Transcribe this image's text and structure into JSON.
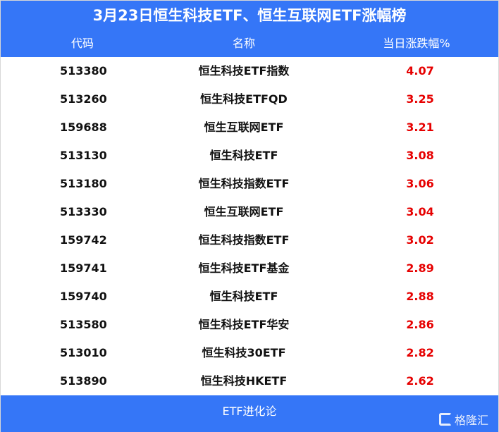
{
  "title": "3月23日恒生科技ETF、恒生互联网ETF涨幅榜",
  "columns": {
    "code": "代码",
    "name": "名称",
    "change": "当日涨跌幅%"
  },
  "rows": [
    {
      "code": "513380",
      "name": "恒生科技ETF指数",
      "change": "4.07"
    },
    {
      "code": "513260",
      "name": "恒生科技ETFQD",
      "change": "3.25"
    },
    {
      "code": "159688",
      "name": "恒生互联网ETF",
      "change": "3.21"
    },
    {
      "code": "513130",
      "name": "恒生科技ETF",
      "change": "3.08"
    },
    {
      "code": "513180",
      "name": "恒生科技指数ETF",
      "change": "3.06"
    },
    {
      "code": "513330",
      "name": "恒生互联网ETF",
      "change": "3.04"
    },
    {
      "code": "159742",
      "name": "恒生科技指数ETF",
      "change": "3.02"
    },
    {
      "code": "159741",
      "name": "恒生科技ETF基金",
      "change": "2.89"
    },
    {
      "code": "159740",
      "name": "恒生科技ETF",
      "change": "2.88"
    },
    {
      "code": "513580",
      "name": "恒生科技ETF华安",
      "change": "2.86"
    },
    {
      "code": "513010",
      "name": "恒生科技30ETF",
      "change": "2.82"
    },
    {
      "code": "513890",
      "name": "恒生科技HKETF",
      "change": "2.62"
    }
  ],
  "footer": {
    "text": "ETF进化论",
    "logo": "格隆汇"
  },
  "colors": {
    "header": "#3576f7",
    "positive": "#e60000"
  }
}
